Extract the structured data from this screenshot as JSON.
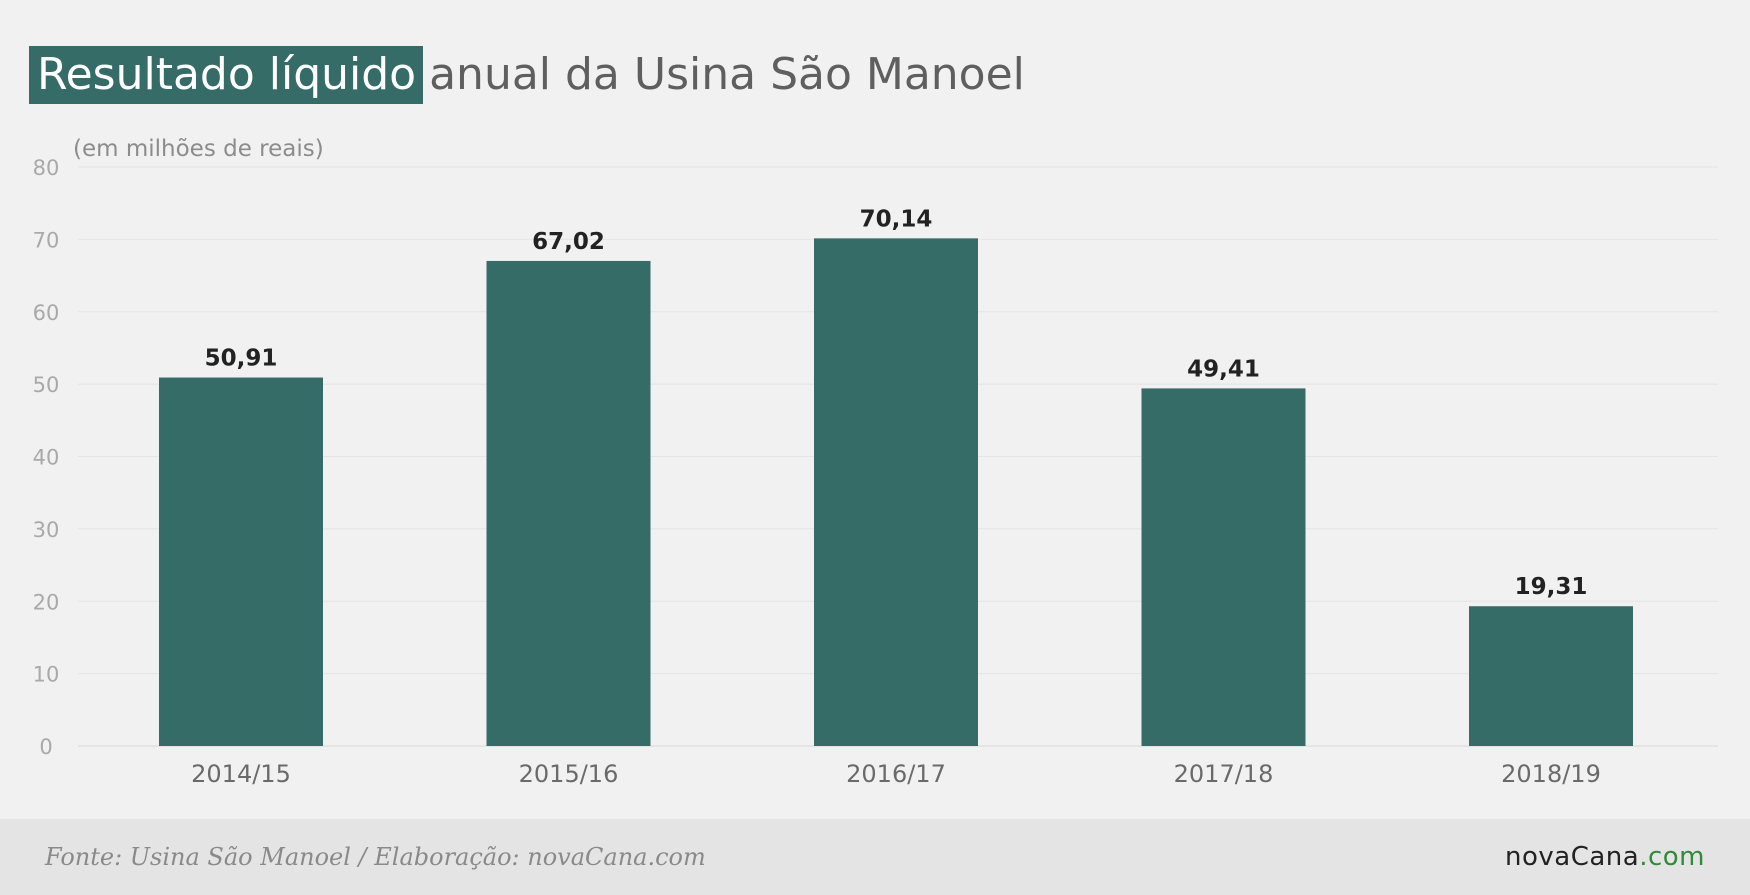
{
  "title": {
    "highlight": "Resultado líquido",
    "rest": "anual da Usina São Manoel"
  },
  "chart_data": {
    "type": "bar",
    "unit_label": "(em milhões de reais)",
    "categories": [
      "2014/15",
      "2015/16",
      "2016/17",
      "2017/18",
      "2018/19"
    ],
    "values": [
      50.91,
      67.02,
      70.14,
      49.41,
      19.31
    ],
    "value_labels": [
      "50,91",
      "67,02",
      "70,14",
      "49,41",
      "19,31"
    ],
    "ylim": [
      0,
      80
    ],
    "yticks": [
      "0",
      "10",
      "20",
      "30",
      "40",
      "50",
      "60",
      "70",
      "80"
    ],
    "grid": true,
    "bar_color": "#356c68"
  },
  "footer": {
    "source": "Fonte: Usina São Manoel / Elaboração: novaCana.com",
    "brand_main": "novaCana",
    "brand_suffix": ".com"
  },
  "colors": {
    "accent": "#356c68",
    "brand_com": "#2e8b3a"
  }
}
